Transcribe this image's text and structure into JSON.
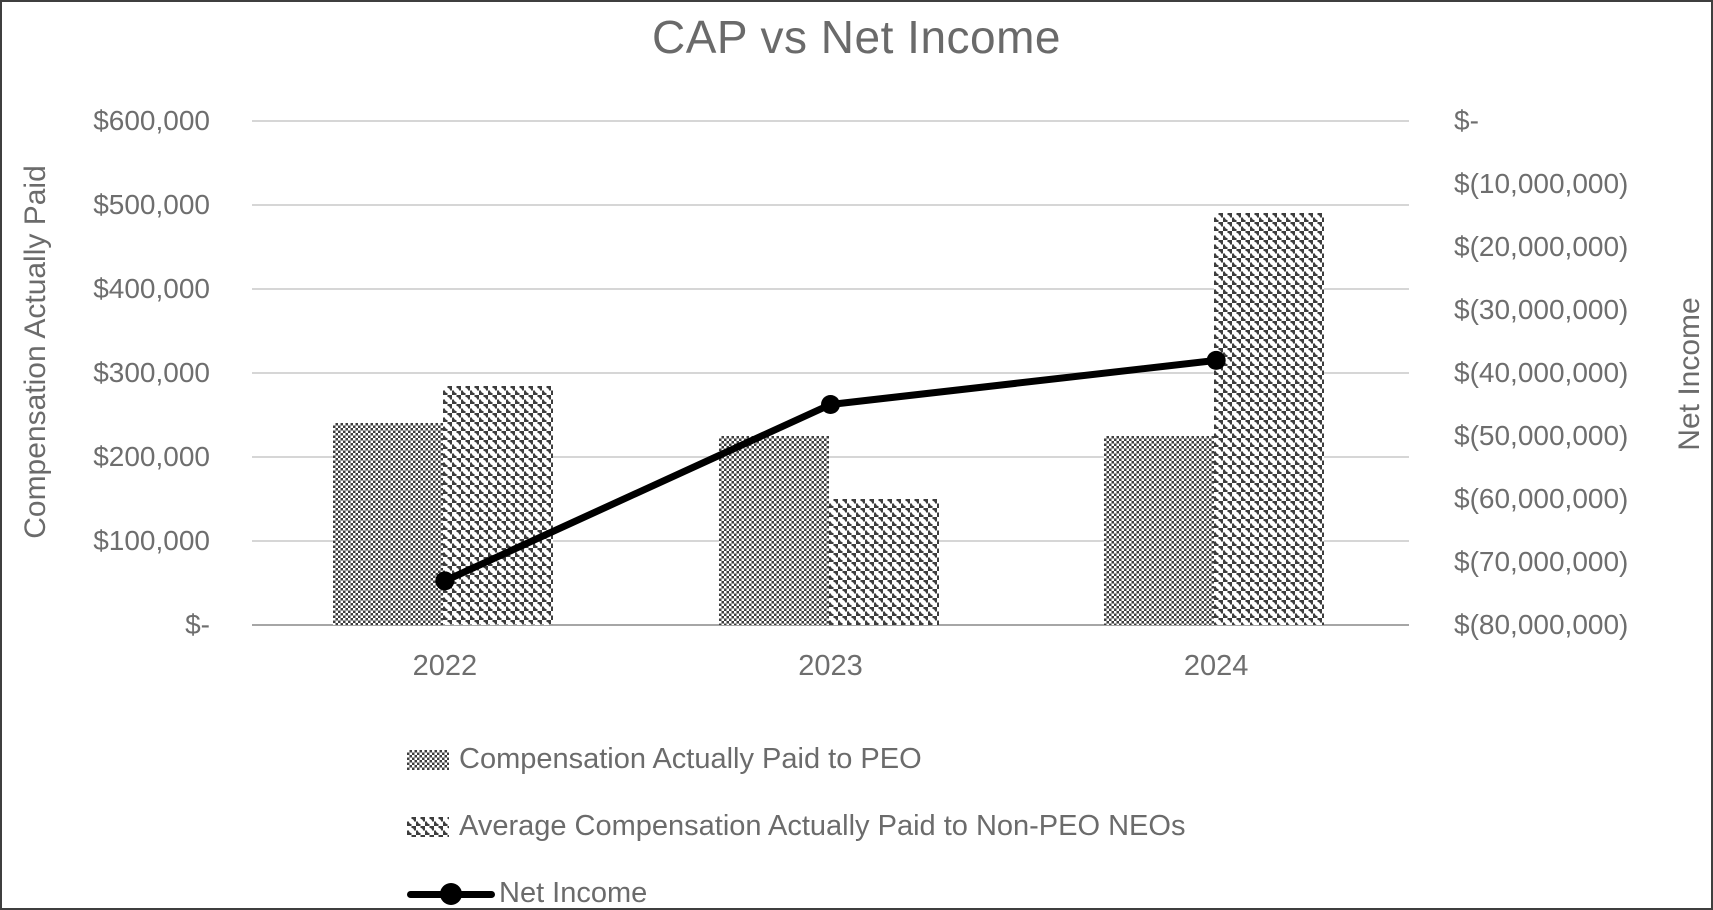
{
  "title": "CAP vs Net Income",
  "left_axis": {
    "title": "Compensation Actually Paid",
    "ticks": [
      "$600,000",
      "$500,000",
      "$400,000",
      "$300,000",
      "$200,000",
      "$100,000",
      "$-"
    ],
    "max": 600000,
    "min": 0
  },
  "right_axis": {
    "title": "Net Income",
    "ticks": [
      "$-",
      "$(10,000,000)",
      "$(20,000,000)",
      "$(30,000,000)",
      "$(40,000,000)",
      "$(50,000,000)",
      "$(60,000,000)",
      "$(70,000,000)",
      "$(80,000,000)"
    ],
    "max": 0,
    "min": -80000000
  },
  "chart_data": {
    "type": "combo-bar-line",
    "categories": [
      "2022",
      "2023",
      "2024"
    ],
    "series": [
      {
        "name": "Compensation Actually Paid to PEO",
        "type": "bar",
        "axis": "left",
        "pattern": "dense-checker",
        "values": [
          240000,
          225000,
          225000
        ]
      },
      {
        "name": "Average Compensation Actually Paid to Non-PEO NEOs",
        "type": "bar",
        "axis": "left",
        "pattern": "open-weave",
        "values": [
          285000,
          150000,
          490000
        ]
      },
      {
        "name": "Net Income",
        "type": "line",
        "axis": "right",
        "color": "#000000",
        "values": [
          -73000000,
          -45000000,
          -38000000
        ]
      }
    ],
    "left_axis_range": [
      0,
      600000
    ],
    "right_axis_range": [
      -80000000,
      0
    ],
    "grid": true,
    "legend_position": "bottom-left"
  },
  "colors": {
    "text": "#6b6b6b",
    "gridline": "#d6d6d6",
    "axis_line": "#a6a6a6",
    "line_series": "#000000"
  }
}
